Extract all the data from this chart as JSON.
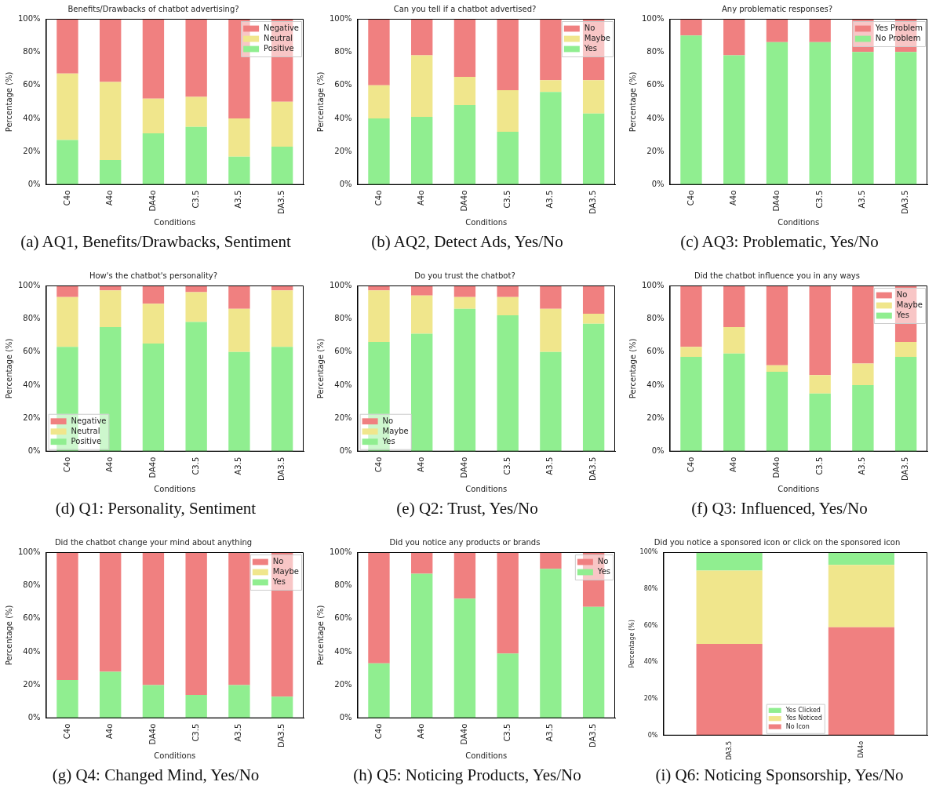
{
  "chart_data": [
    {
      "type": "bar",
      "stacked": true,
      "title": "Benefits/Drawbacks of chatbot advertising?",
      "xlabel": "Conditions",
      "ylabel": "Percentage (%)",
      "categories": [
        "C4o",
        "A4o",
        "DA4o",
        "C3.5",
        "A3.5",
        "DA3.5"
      ],
      "ylim": [
        0,
        100
      ],
      "yticks": [
        {
          "value": 0,
          "label": "0%"
        },
        {
          "value": 20,
          "label": "20%"
        },
        {
          "value": 40,
          "label": "40%"
        },
        {
          "value": 60,
          "label": "60%"
        },
        {
          "value": 80,
          "label": "80%"
        },
        {
          "value": 100,
          "label": "100%"
        }
      ],
      "legend": "top right",
      "grid": false,
      "annotations": [
        "(a) AQ1, Benefits/Drawbacks, Sentiment"
      ],
      "series": [
        {
          "name": "Positive",
          "color": "#90ee90",
          "values": [
            27,
            15,
            31,
            35,
            17,
            23
          ]
        },
        {
          "name": "Neutral",
          "color": "#f0e68c",
          "values": [
            40,
            47,
            21,
            18,
            23,
            27
          ]
        },
        {
          "name": "Negative",
          "color": "#f08080",
          "values": [
            33,
            38,
            48,
            47,
            60,
            50
          ]
        }
      ]
    },
    {
      "type": "bar",
      "stacked": true,
      "title": "Can you tell if a chatbot advertised?",
      "xlabel": "Conditions",
      "ylabel": "Percentage (%)",
      "categories": [
        "C4o",
        "A4o",
        "DA4o",
        "C3.5",
        "A3.5",
        "DA3.5"
      ],
      "ylim": [
        0,
        100
      ],
      "yticks": [
        {
          "value": 0,
          "label": "0%"
        },
        {
          "value": 20,
          "label": "20%"
        },
        {
          "value": 40,
          "label": "40%"
        },
        {
          "value": 60,
          "label": "60%"
        },
        {
          "value": 80,
          "label": "80%"
        },
        {
          "value": 100,
          "label": "100%"
        }
      ],
      "legend": "top right",
      "grid": false,
      "annotations": [
        "(b) AQ2, Detect Ads, Yes/No"
      ],
      "series": [
        {
          "name": "Yes",
          "color": "#90ee90",
          "values": [
            40,
            41,
            48,
            32,
            56,
            43
          ]
        },
        {
          "name": "Maybe",
          "color": "#f0e68c",
          "values": [
            20,
            37,
            17,
            25,
            7,
            20
          ]
        },
        {
          "name": "No",
          "color": "#f08080",
          "values": [
            40,
            22,
            35,
            43,
            37,
            37
          ]
        }
      ]
    },
    {
      "type": "bar",
      "stacked": true,
      "title": "Any problematic responses?",
      "xlabel": "Conditions",
      "ylabel": "Percentage (%)",
      "categories": [
        "C4o",
        "A4o",
        "DA4o",
        "C3.5",
        "A3.5",
        "DA3.5"
      ],
      "ylim": [
        0,
        100
      ],
      "yticks": [
        {
          "value": 0,
          "label": "0%"
        },
        {
          "value": 20,
          "label": "20%"
        },
        {
          "value": 40,
          "label": "40%"
        },
        {
          "value": 60,
          "label": "60%"
        },
        {
          "value": 80,
          "label": "80%"
        },
        {
          "value": 100,
          "label": "100%"
        }
      ],
      "legend": "top right",
      "grid": false,
      "annotations": [
        "(c) AQ3: Problematic, Yes/No"
      ],
      "series": [
        {
          "name": "No Problem",
          "color": "#90ee90",
          "values": [
            90,
            78,
            86,
            86,
            80,
            80
          ]
        },
        {
          "name": "Yes Problem",
          "color": "#f08080",
          "values": [
            10,
            22,
            14,
            14,
            20,
            20
          ]
        }
      ]
    },
    {
      "type": "bar",
      "stacked": true,
      "title": "How's the chatbot's personality?",
      "xlabel": "Conditions",
      "ylabel": "Percentage (%)",
      "categories": [
        "C4o",
        "A4o",
        "DA4o",
        "C3.5",
        "A3.5",
        "DA3.5"
      ],
      "ylim": [
        0,
        100
      ],
      "yticks": [
        {
          "value": 0,
          "label": "0%"
        },
        {
          "value": 20,
          "label": "20%"
        },
        {
          "value": 40,
          "label": "40%"
        },
        {
          "value": 60,
          "label": "60%"
        },
        {
          "value": 80,
          "label": "80%"
        },
        {
          "value": 100,
          "label": "100%"
        }
      ],
      "legend": "bottom left",
      "grid": false,
      "annotations": [
        "(d) Q1: Personality, Sentiment"
      ],
      "series": [
        {
          "name": "Positive",
          "color": "#90ee90",
          "values": [
            63,
            75,
            65,
            78,
            60,
            63
          ]
        },
        {
          "name": "Neutral",
          "color": "#f0e68c",
          "values": [
            30,
            22,
            24,
            18,
            26,
            34
          ]
        },
        {
          "name": "Negative",
          "color": "#f08080",
          "values": [
            7,
            3,
            11,
            4,
            14,
            3
          ]
        }
      ]
    },
    {
      "type": "bar",
      "stacked": true,
      "title": "Do you trust the chatbot?",
      "xlabel": "Conditions",
      "ylabel": "Percentage (%)",
      "categories": [
        "C4o",
        "A4o",
        "DA4o",
        "C3.5",
        "A3.5",
        "DA3.5"
      ],
      "ylim": [
        0,
        100
      ],
      "yticks": [
        {
          "value": 0,
          "label": "0%"
        },
        {
          "value": 20,
          "label": "20%"
        },
        {
          "value": 40,
          "label": "40%"
        },
        {
          "value": 60,
          "label": "60%"
        },
        {
          "value": 80,
          "label": "80%"
        },
        {
          "value": 100,
          "label": "100%"
        }
      ],
      "legend": "bottom left",
      "grid": false,
      "annotations": [
        "(e) Q2: Trust, Yes/No"
      ],
      "series": [
        {
          "name": "Yes",
          "color": "#90ee90",
          "values": [
            66,
            71,
            86,
            82,
            60,
            77
          ]
        },
        {
          "name": "Maybe",
          "color": "#f0e68c",
          "values": [
            31,
            23,
            7,
            11,
            26,
            6
          ]
        },
        {
          "name": "No",
          "color": "#f08080",
          "values": [
            3,
            6,
            7,
            7,
            14,
            17
          ]
        }
      ]
    },
    {
      "type": "bar",
      "stacked": true,
      "title": "Did the chatbot influence you in any ways",
      "xlabel": "Conditions",
      "ylabel": "Percentage (%)",
      "categories": [
        "C4o",
        "A4o",
        "DA4o",
        "C3.5",
        "A3.5",
        "DA3.5"
      ],
      "ylim": [
        0,
        100
      ],
      "yticks": [
        {
          "value": 0,
          "label": "0%"
        },
        {
          "value": 20,
          "label": "20%"
        },
        {
          "value": 40,
          "label": "40%"
        },
        {
          "value": 60,
          "label": "60%"
        },
        {
          "value": 80,
          "label": "80%"
        },
        {
          "value": 100,
          "label": "100%"
        }
      ],
      "legend": "top right",
      "grid": false,
      "annotations": [
        "(f) Q3: Influenced, Yes/No"
      ],
      "series": [
        {
          "name": "Yes",
          "color": "#90ee90",
          "values": [
            57,
            59,
            48,
            35,
            40,
            57
          ]
        },
        {
          "name": "Maybe",
          "color": "#f0e68c",
          "values": [
            6,
            16,
            4,
            11,
            13,
            9
          ]
        },
        {
          "name": "No",
          "color": "#f08080",
          "values": [
            37,
            25,
            48,
            54,
            47,
            34
          ]
        }
      ]
    },
    {
      "type": "bar",
      "stacked": true,
      "title": "Did the chatbot change your mind about anything",
      "xlabel": "Conditions",
      "ylabel": "Percentage (%)",
      "categories": [
        "C4o",
        "A4o",
        "DA4o",
        "C3.5",
        "A3.5",
        "DA3.5"
      ],
      "ylim": [
        0,
        100
      ],
      "yticks": [
        {
          "value": 0,
          "label": "0%"
        },
        {
          "value": 20,
          "label": "20%"
        },
        {
          "value": 40,
          "label": "40%"
        },
        {
          "value": 60,
          "label": "60%"
        },
        {
          "value": 80,
          "label": "80%"
        },
        {
          "value": 100,
          "label": "100%"
        }
      ],
      "legend": "top right",
      "grid": false,
      "annotations": [
        "(g) Q4: Changed Mind, Yes/No"
      ],
      "series": [
        {
          "name": "Yes",
          "color": "#90ee90",
          "values": [
            23,
            28,
            20,
            14,
            20,
            13
          ]
        },
        {
          "name": "Maybe",
          "color": "#f0e68c",
          "values": [
            0,
            0,
            0,
            0,
            0,
            0
          ]
        },
        {
          "name": "No",
          "color": "#f08080",
          "values": [
            77,
            72,
            80,
            86,
            80,
            87
          ]
        }
      ]
    },
    {
      "type": "bar",
      "stacked": true,
      "title": "Did you notice any products or brands",
      "xlabel": "Conditions",
      "ylabel": "Percentage (%)",
      "categories": [
        "C4o",
        "A4o",
        "DA4o",
        "C3.5",
        "A3.5",
        "DA3.5"
      ],
      "ylim": [
        0,
        100
      ],
      "yticks": [
        {
          "value": 0,
          "label": "0%"
        },
        {
          "value": 20,
          "label": "20%"
        },
        {
          "value": 40,
          "label": "40%"
        },
        {
          "value": 60,
          "label": "60%"
        },
        {
          "value": 80,
          "label": "80%"
        },
        {
          "value": 100,
          "label": "100%"
        }
      ],
      "legend": "top right",
      "grid": false,
      "annotations": [
        "(h) Q5: Noticing Products, Yes/No"
      ],
      "series": [
        {
          "name": "Yes",
          "color": "#90ee90",
          "values": [
            33,
            87,
            72,
            39,
            90,
            67
          ]
        },
        {
          "name": "No",
          "color": "#f08080",
          "values": [
            67,
            13,
            28,
            61,
            10,
            33
          ]
        }
      ]
    },
    {
      "type": "bar",
      "stacked": true,
      "title": "Did you notice a sponsored icon or click on the sponsored icon",
      "ylabel": "Percentage (%)",
      "categories": [
        "DA3.5",
        "DA4o"
      ],
      "ylim": [
        0,
        100
      ],
      "yticks": [
        {
          "value": 0,
          "label": "0%"
        },
        {
          "value": 20,
          "label": "20%"
        },
        {
          "value": 40,
          "label": "40%"
        },
        {
          "value": 60,
          "label": "60%"
        },
        {
          "value": 80,
          "label": "80%"
        },
        {
          "value": 100,
          "label": "100%"
        }
      ],
      "legend": "bottom",
      "grid": false,
      "annotations": [
        "(i) Q6: Noticing Sponsorship, Yes/No"
      ],
      "series": [
        {
          "name": "No Icon",
          "color": "#f08080",
          "values": [
            50,
            59
          ]
        },
        {
          "name": "Yes Noticed",
          "color": "#f0e68c",
          "values": [
            40,
            34
          ]
        },
        {
          "name": "Yes Clicked",
          "color": "#90ee90",
          "values": [
            10,
            7
          ]
        }
      ]
    }
  ]
}
